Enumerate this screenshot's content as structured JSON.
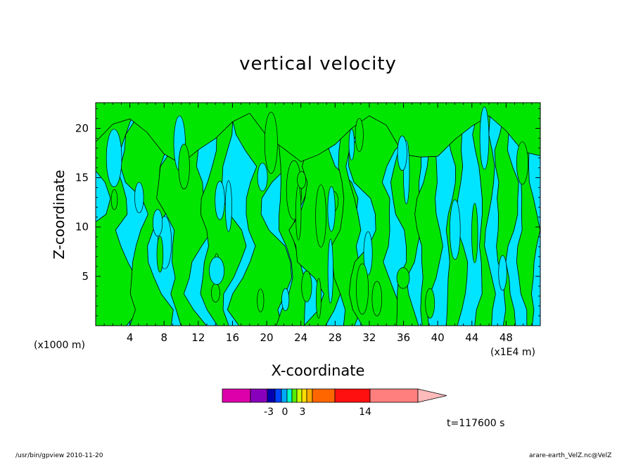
{
  "chart_data": {
    "type": "heatmap",
    "title": "vertical velocity",
    "xlabel": "X-coordinate",
    "ylabel": "Z-coordinate",
    "x_multiplier": "(x1E4 m)",
    "y_multiplier": "(x1000 m)",
    "xlim": [
      0,
      52
    ],
    "ylim": [
      0,
      22.6
    ],
    "x_ticks": [
      4,
      8,
      12,
      16,
      20,
      24,
      28,
      32,
      36,
      40,
      44,
      48
    ],
    "y_ticks": [
      5,
      10,
      15,
      20
    ],
    "grid": false,
    "field_colors": {
      "negative": "#00e5ff",
      "positive": "#00e600",
      "contour": "#000000"
    },
    "colorbar": {
      "colors": [
        "#dd00aa",
        "#8800bb",
        "#0000b0",
        "#0044ff",
        "#00aaff",
        "#00ffcc",
        "#55ee00",
        "#ccff00",
        "#ffdd00",
        "#ffaa00",
        "#ff6600",
        "#ff1010",
        "#ff7f7f",
        "#ffbbbb"
      ],
      "labels": [
        "-3",
        "0",
        "3",
        "14"
      ],
      "extend": "max"
    },
    "time_label": "t=117600 s"
  },
  "footer": {
    "left": "/usr/bin/gpview   2010-11-20",
    "right": "arare-earth_VelZ.nc@VelZ"
  }
}
